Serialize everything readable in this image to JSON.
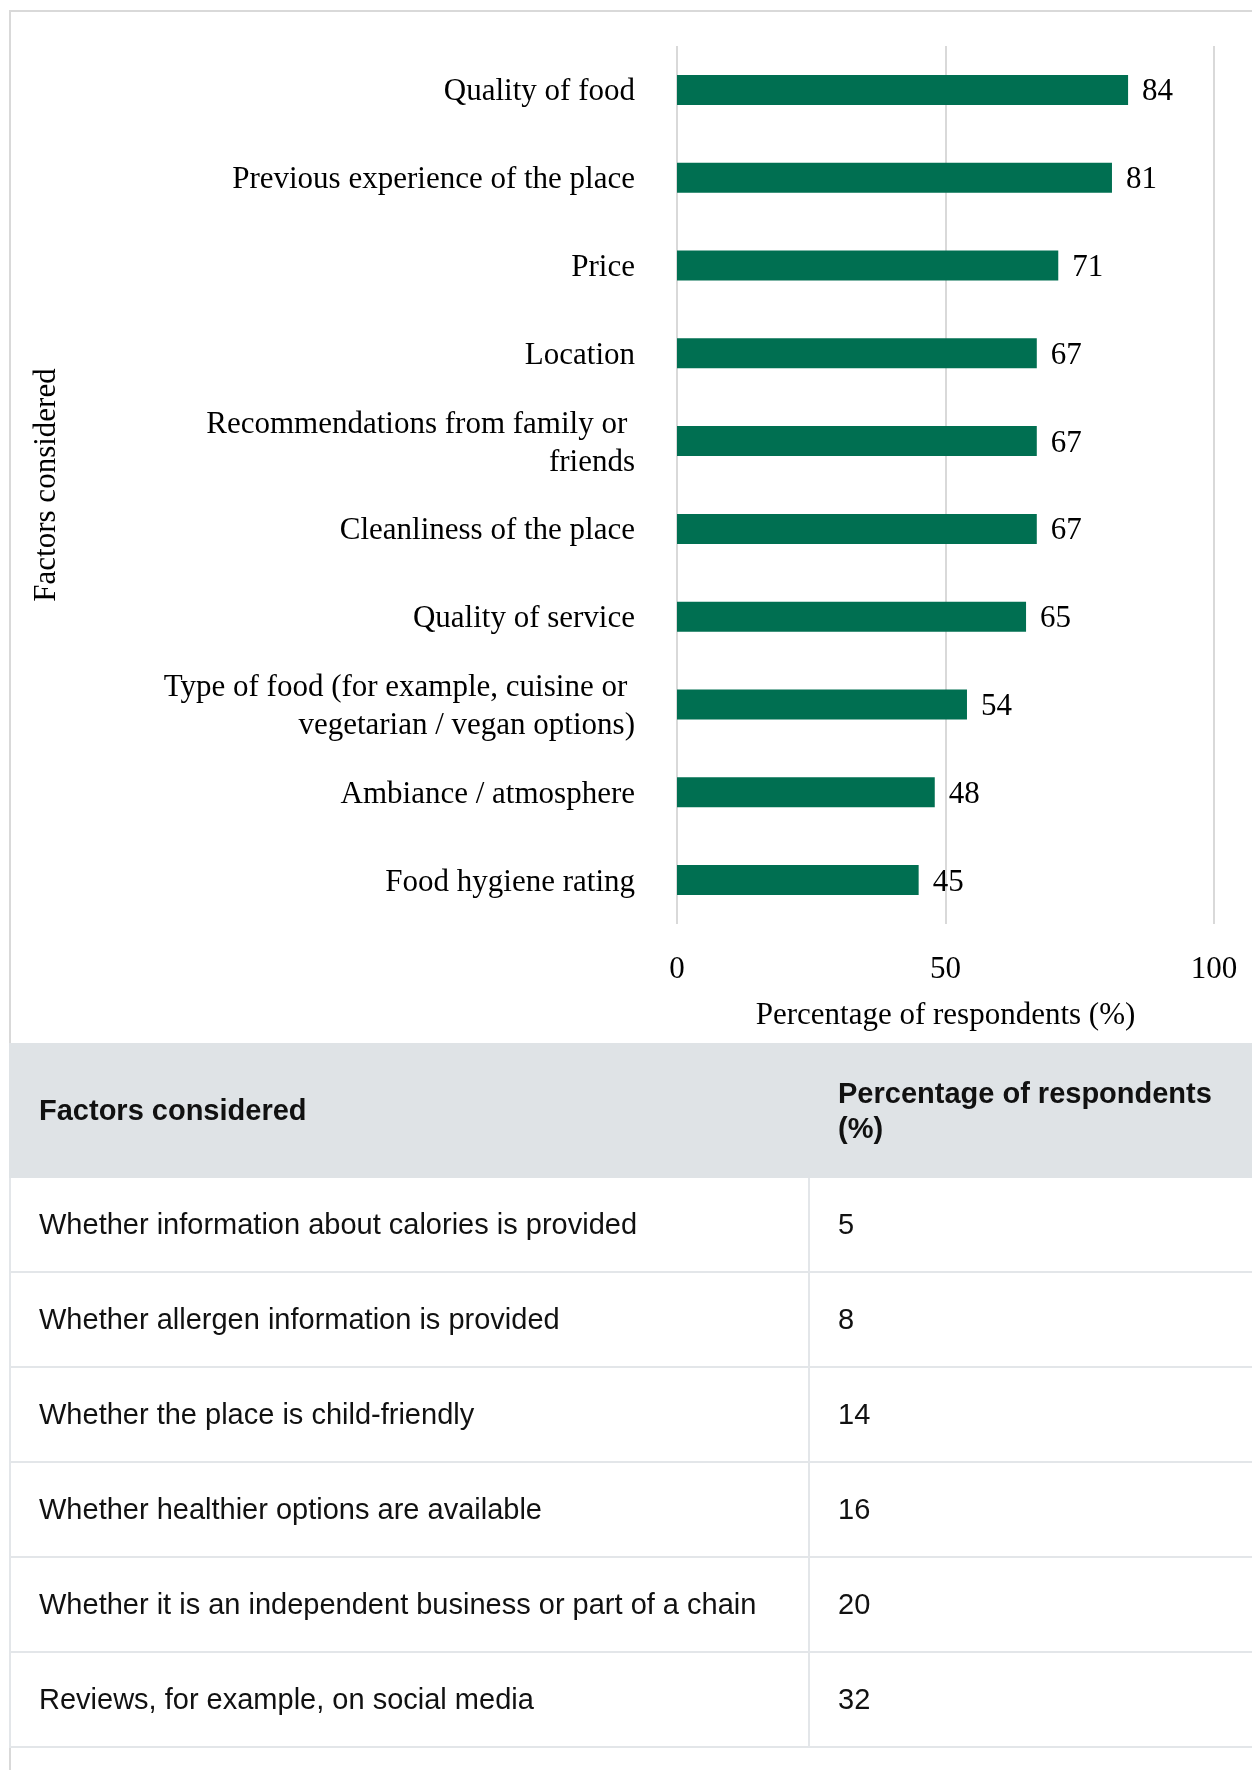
{
  "chart_data": [
    {
      "type": "bar",
      "orientation": "horizontal",
      "ylabel": "Factors considered",
      "xlabel": "Percentage of respondents (%)",
      "categories": [
        "Quality of food",
        "Previous experience of the place",
        "Price",
        "Location",
        "Recommendations from family or friends",
        "Cleanliness of the place",
        "Quality of service",
        "Type of food (for example, cuisine or vegetarian / vegan options)",
        "Ambiance / atmosphere",
        "Food hygiene rating"
      ],
      "values": [
        84,
        81,
        71,
        67,
        67,
        67,
        65,
        54,
        48,
        45
      ],
      "color": "#006f51",
      "xlim": [
        0,
        100
      ],
      "xticks": [
        0,
        50,
        100
      ],
      "grid": "x",
      "data_labels": true
    },
    {
      "type": "other",
      "ylabel": "Factors considered",
      "xlabel": "Percentage of respondents (%)",
      "categories": [
        "Whether information about calories is provided",
        "Whether allergen information is provided",
        "Whether the place is child-friendly",
        "Whether healthier options are available",
        "Whether it is an independent business or part of a chain",
        "Reviews, for example, on social media"
      ],
      "values": [
        5,
        8,
        14,
        16,
        20,
        32
      ],
      "data_labels": true
    }
  ]
}
